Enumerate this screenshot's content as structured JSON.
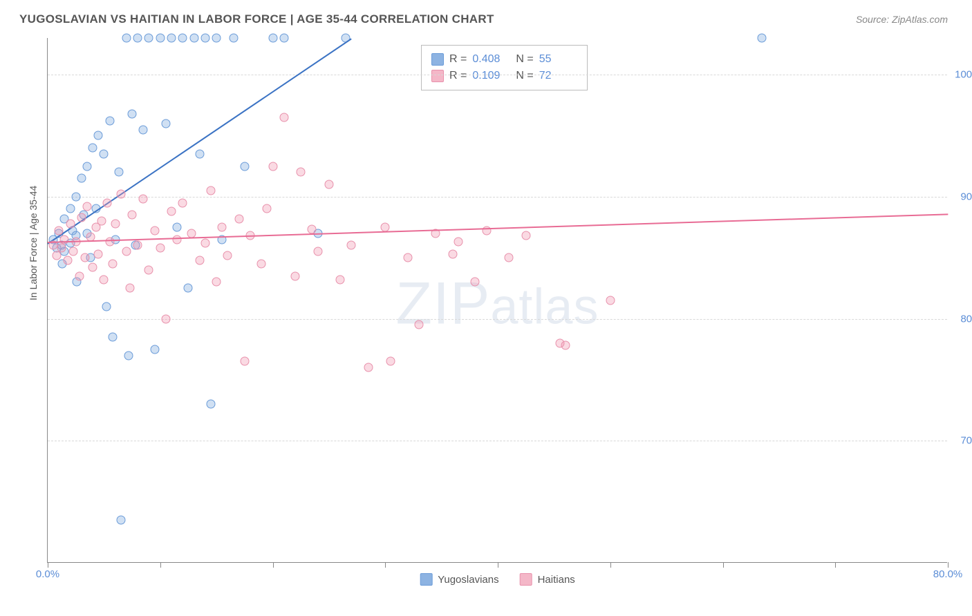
{
  "header": {
    "title": "YUGOSLAVIAN VS HAITIAN IN LABOR FORCE | AGE 35-44 CORRELATION CHART",
    "source": "Source: ZipAtlas.com"
  },
  "chart": {
    "type": "scatter",
    "y_axis_title": "In Labor Force | Age 35-44",
    "background_color": "#ffffff",
    "grid_color": "#d8d8d8",
    "axis_color": "#888888",
    "label_color": "#5b8dd6",
    "title_color": "#555555",
    "title_fontsize": 17,
    "label_fontsize": 15,
    "marker_radius": 6.5,
    "xlim": [
      0,
      80
    ],
    "ylim": [
      60,
      103
    ],
    "x_ticks": [
      0,
      10,
      20,
      30,
      40,
      50,
      60,
      70,
      80
    ],
    "x_tick_labels": {
      "0": "0.0%",
      "80": "80.0%"
    },
    "y_gridlines": [
      70,
      80,
      90,
      100
    ],
    "y_tick_labels": {
      "70": "70.0%",
      "80": "80.0%",
      "90": "90.0%",
      "100": "100.0%"
    },
    "watermark": "ZIPatlas",
    "stats_legend": {
      "rows": [
        {
          "r_label": "R =",
          "r_value": "0.408",
          "n_label": "N =",
          "n_value": "55",
          "color": "#8db3e2",
          "border": "#6a9bd8"
        },
        {
          "r_label": "R =",
          "r_value": "0.109",
          "n_label": "N =",
          "n_value": "72",
          "color": "#f4b7c8",
          "border": "#e890ab"
        }
      ]
    },
    "bottom_legend": [
      {
        "label": "Yugoslavians",
        "color": "#8db3e2",
        "border": "#6a9bd8"
      },
      {
        "label": "Haitians",
        "color": "#f4b7c8",
        "border": "#e890ab"
      }
    ],
    "series": [
      {
        "name": "Yugoslavians",
        "fill": "rgba(120,165,220,0.35)",
        "stroke": "#6a9bd8",
        "trend": {
          "x1": 0,
          "y1": 86.2,
          "x2": 27,
          "y2": 103,
          "color": "#3b73c4",
          "width": 2
        },
        "points": [
          [
            0.5,
            86.5
          ],
          [
            0.8,
            85.8
          ],
          [
            1.0,
            87.0
          ],
          [
            1.2,
            86.0
          ],
          [
            1.3,
            84.5
          ],
          [
            1.5,
            88.2
          ],
          [
            1.5,
            85.5
          ],
          [
            2.0,
            89.0
          ],
          [
            2.0,
            86.2
          ],
          [
            2.2,
            87.2
          ],
          [
            2.5,
            90.0
          ],
          [
            2.5,
            86.8
          ],
          [
            2.6,
            83.0
          ],
          [
            3.0,
            91.5
          ],
          [
            3.2,
            88.5
          ],
          [
            3.5,
            92.5
          ],
          [
            3.5,
            87.0
          ],
          [
            3.8,
            85.0
          ],
          [
            4.0,
            94.0
          ],
          [
            4.3,
            89.0
          ],
          [
            4.5,
            95.0
          ],
          [
            5.0,
            93.5
          ],
          [
            5.2,
            81.0
          ],
          [
            5.5,
            96.2
          ],
          [
            5.8,
            78.5
          ],
          [
            6.0,
            86.5
          ],
          [
            6.3,
            92.0
          ],
          [
            6.5,
            63.5
          ],
          [
            7.0,
            103
          ],
          [
            7.2,
            77.0
          ],
          [
            7.5,
            96.8
          ],
          [
            7.8,
            86.0
          ],
          [
            8.0,
            103
          ],
          [
            8.5,
            95.5
          ],
          [
            9.0,
            103
          ],
          [
            9.5,
            77.5
          ],
          [
            10.0,
            103
          ],
          [
            10.5,
            96.0
          ],
          [
            11.0,
            103
          ],
          [
            11.5,
            87.5
          ],
          [
            12.0,
            103
          ],
          [
            12.5,
            82.5
          ],
          [
            13.0,
            103
          ],
          [
            13.5,
            93.5
          ],
          [
            14.0,
            103
          ],
          [
            14.5,
            73.0
          ],
          [
            15.0,
            103
          ],
          [
            15.5,
            86.5
          ],
          [
            16.5,
            103
          ],
          [
            17.5,
            92.5
          ],
          [
            20.0,
            103
          ],
          [
            21.0,
            103
          ],
          [
            24.0,
            87.0
          ],
          [
            26.5,
            103
          ],
          [
            63.5,
            103
          ]
        ]
      },
      {
        "name": "Haitians",
        "fill": "rgba(240,150,175,0.35)",
        "stroke": "#e890ab",
        "trend": {
          "x1": 0,
          "y1": 86.3,
          "x2": 80,
          "y2": 88.6,
          "color": "#e86b94",
          "width": 2
        },
        "points": [
          [
            0.5,
            86.0
          ],
          [
            0.8,
            85.2
          ],
          [
            1.0,
            87.2
          ],
          [
            1.2,
            85.8
          ],
          [
            1.5,
            86.5
          ],
          [
            1.8,
            84.8
          ],
          [
            2.0,
            87.8
          ],
          [
            2.3,
            85.5
          ],
          [
            2.5,
            86.3
          ],
          [
            2.8,
            83.5
          ],
          [
            3.0,
            88.3
          ],
          [
            3.3,
            85.0
          ],
          [
            3.5,
            89.2
          ],
          [
            3.8,
            86.7
          ],
          [
            4.0,
            84.2
          ],
          [
            4.3,
            87.5
          ],
          [
            4.5,
            85.3
          ],
          [
            4.8,
            88.0
          ],
          [
            5.0,
            83.2
          ],
          [
            5.3,
            89.5
          ],
          [
            5.5,
            86.3
          ],
          [
            5.8,
            84.5
          ],
          [
            6.0,
            87.8
          ],
          [
            6.5,
            90.2
          ],
          [
            7.0,
            85.5
          ],
          [
            7.3,
            82.5
          ],
          [
            7.5,
            88.5
          ],
          [
            8.0,
            86.0
          ],
          [
            8.5,
            89.8
          ],
          [
            9.0,
            84.0
          ],
          [
            9.5,
            87.2
          ],
          [
            10.0,
            85.8
          ],
          [
            10.5,
            80.0
          ],
          [
            11.0,
            88.8
          ],
          [
            11.5,
            86.5
          ],
          [
            12.0,
            89.5
          ],
          [
            12.8,
            87.0
          ],
          [
            13.5,
            84.8
          ],
          [
            14.0,
            86.2
          ],
          [
            14.5,
            90.5
          ],
          [
            15.0,
            83.0
          ],
          [
            15.5,
            87.5
          ],
          [
            16.0,
            85.2
          ],
          [
            17.0,
            88.2
          ],
          [
            17.5,
            76.5
          ],
          [
            18.0,
            86.8
          ],
          [
            19.0,
            84.5
          ],
          [
            19.5,
            89.0
          ],
          [
            20.0,
            92.5
          ],
          [
            21.0,
            96.5
          ],
          [
            22.0,
            83.5
          ],
          [
            22.5,
            92.0
          ],
          [
            23.5,
            87.3
          ],
          [
            24.0,
            85.5
          ],
          [
            25.0,
            91.0
          ],
          [
            26.0,
            83.2
          ],
          [
            27.0,
            86.0
          ],
          [
            28.5,
            76.0
          ],
          [
            30.0,
            87.5
          ],
          [
            30.5,
            76.5
          ],
          [
            32.0,
            85.0
          ],
          [
            33.0,
            79.5
          ],
          [
            34.5,
            87.0
          ],
          [
            36.0,
            85.3
          ],
          [
            36.5,
            86.3
          ],
          [
            38.0,
            83.0
          ],
          [
            39.0,
            87.2
          ],
          [
            41.0,
            85.0
          ],
          [
            42.5,
            86.8
          ],
          [
            45.5,
            78.0
          ],
          [
            46.0,
            77.8
          ],
          [
            50.0,
            81.5
          ]
        ]
      }
    ]
  }
}
